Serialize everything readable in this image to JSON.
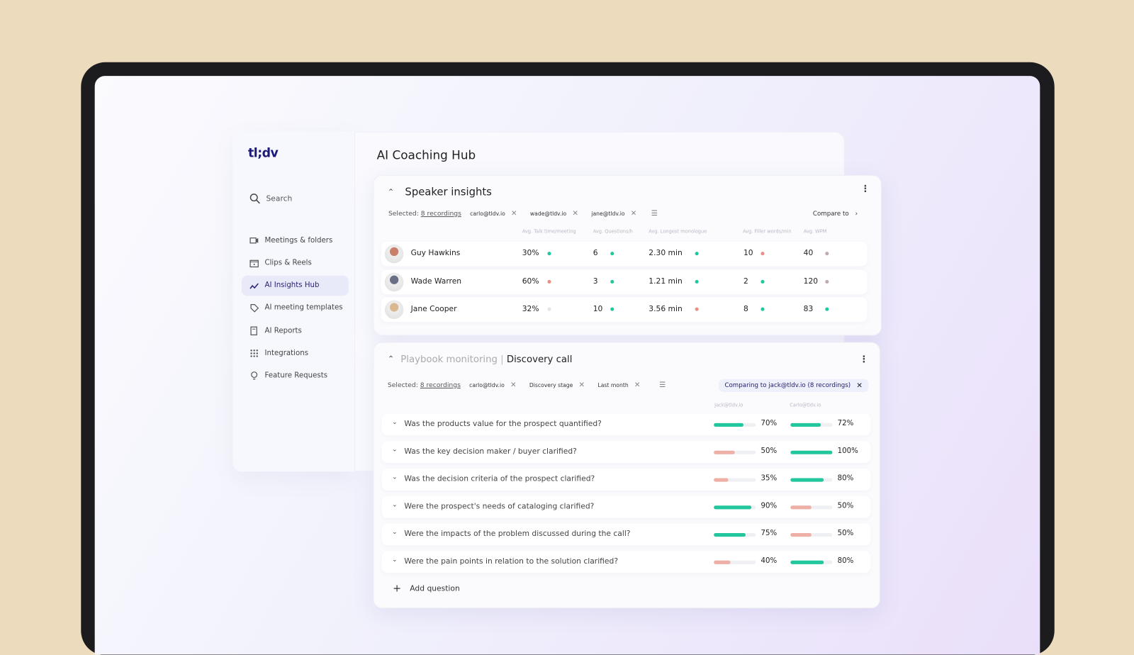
{
  "app": {
    "logo": "tl;dv",
    "page_title": "AI Coaching Hub"
  },
  "sidebar": {
    "search": "Search",
    "items": [
      {
        "label": "Meetings & folders",
        "icon": "video-camera-icon"
      },
      {
        "label": "Clips & Reels",
        "icon": "clapperboard-icon"
      },
      {
        "label": "AI Insights Hub",
        "icon": "insights-chart-icon",
        "active": true
      },
      {
        "label": "AI meeting templates",
        "icon": "tag-icon"
      },
      {
        "label": "AI Reports",
        "icon": "report-icon"
      },
      {
        "label": "Integrations",
        "icon": "grid-icon"
      },
      {
        "label": "Feature Requests",
        "icon": "lightbulb-icon"
      }
    ]
  },
  "speaker": {
    "title": "Speaker insights",
    "selected_label": "Selected:",
    "recordings": "8 recordings",
    "chips": [
      "carlo@tldv.io",
      "wade@tldv.io",
      "jane@tldv.io"
    ],
    "compare": "Compare to",
    "columns": [
      "Avg. Talk time/meeting",
      "Avg. Questions/h",
      "Avg. Longest monologue",
      "Avg. Filler words/min",
      "Avg. WPM"
    ],
    "colors": {
      "good": "#22c79d",
      "bad": "#e88f86",
      "neutral": "#bdaab3",
      "none": "#e4e4ea"
    },
    "rows": [
      {
        "name": "Guy Hawkins",
        "values": [
          "30%",
          "6",
          "2.30 min",
          "10",
          "40"
        ],
        "status": [
          "good",
          "good",
          "good",
          "bad",
          "neutral"
        ],
        "avatar": "#c9806a"
      },
      {
        "name": "Wade Warren",
        "values": [
          "60%",
          "3",
          "1.21 min",
          "2",
          "120"
        ],
        "status": [
          "bad",
          "good",
          "good",
          "good",
          "neutral"
        ],
        "avatar": "#6b6f86"
      },
      {
        "name": "Jane Cooper",
        "values": [
          "32%",
          "10",
          "3.56 min",
          "8",
          "83"
        ],
        "status": [
          "none",
          "good",
          "bad",
          "good",
          "good"
        ],
        "avatar": "#d9b98f"
      }
    ]
  },
  "playbook": {
    "title_muted": "Playbook monitoring",
    "separator": "|",
    "title": "Discovery call",
    "selected_label": "Selected:",
    "recordings": "8 recordings",
    "chips": [
      "carlo@tldv.io",
      "Discovery stage",
      "Last month"
    ],
    "comparing": "Comparing to jack@tldv.io (8 recordings)",
    "columns": [
      "Jack@tldv.io",
      "Carlo@tldv.io"
    ],
    "questions": [
      {
        "text": "Was the products value for the prospect quantified?",
        "a": 70,
        "b": 72,
        "a_label": "70%",
        "b_label": "72%",
        "a_good": true,
        "b_good": true
      },
      {
        "text": "Was the key decision maker / buyer clarified?",
        "a": 50,
        "b": 100,
        "a_label": "50%",
        "b_label": "100%",
        "a_good": false,
        "b_good": true
      },
      {
        "text": "Was the decision criteria of the prospect clarified?",
        "a": 35,
        "b": 80,
        "a_label": "35%",
        "b_label": "80%",
        "a_good": false,
        "b_good": true
      },
      {
        "text": "Were the prospect's needs of cataloging clarified?",
        "a": 90,
        "b": 50,
        "a_label": "90%",
        "b_label": "50%",
        "a_good": true,
        "b_good": false
      },
      {
        "text": "Were the impacts of the problem discussed during the call?",
        "a": 75,
        "b": 50,
        "a_label": "75%",
        "b_label": "50%",
        "a_good": true,
        "b_good": false
      },
      {
        "text": "Were the pain points in relation to the solution clarified?",
        "a": 40,
        "b": 80,
        "a_label": "40%",
        "b_label": "80%",
        "a_good": false,
        "b_good": true
      }
    ],
    "add_question": "Add question"
  }
}
